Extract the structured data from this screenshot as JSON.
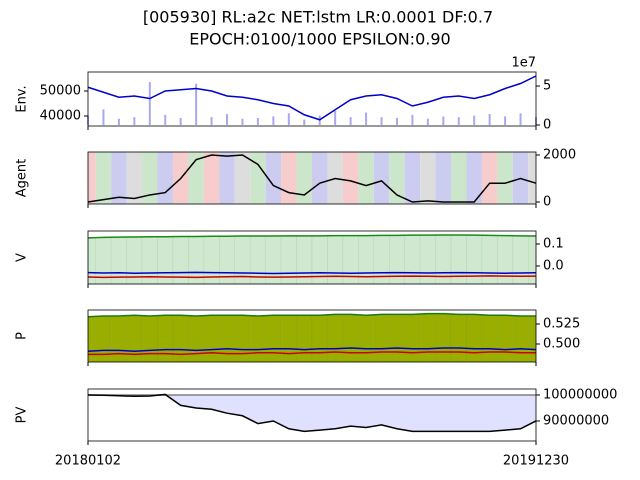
{
  "suptitle": [
    "[005930] RL:a2c NET:lstm LR:0.0001 DF:0.7",
    "EPOCH:0100/1000 EPSILON:0.90"
  ],
  "x_labels": [
    "20180102",
    "20191230"
  ],
  "chart_data": [
    {
      "type": "line",
      "ylabel": "Env.",
      "yticks_side": "left",
      "ylim": [
        36000,
        57600
      ],
      "yticks": [
        40000,
        50000
      ],
      "y2lim": [
        -0.13,
        6.8
      ],
      "y2ticks": [
        0,
        5
      ],
      "y2_offset_label": "1e7",
      "series": [
        {
          "style": "bar",
          "axis": "y2",
          "color": "#a8a8f0",
          "values": [
            1.2,
            2.0,
            0.8,
            1.0,
            5.5,
            1.3,
            0.9,
            5.3,
            1.0,
            1.4,
            0.8,
            0.9,
            1.1,
            1.5,
            0.7,
            1.2,
            1.8,
            1.0,
            1.6,
            1.0,
            0.9,
            1.3,
            0.8,
            1.1,
            1.0,
            1.2,
            1.4,
            1.1,
            1.5,
            1.0
          ]
        },
        {
          "color": "#0000cc",
          "values": [
            51500,
            49500,
            47500,
            48000,
            47000,
            50000,
            50500,
            51000,
            50000,
            48000,
            47500,
            46500,
            45000,
            44000,
            40500,
            38500,
            42500,
            46500,
            48000,
            48500,
            47000,
            44000,
            45500,
            47500,
            48000,
            47000,
            48500,
            51000,
            53000,
            56000
          ]
        }
      ]
    },
    {
      "type": "line",
      "ylabel": "Agent",
      "yticks_side": "right",
      "ylim": [
        -85,
        2128
      ],
      "yticks": [
        0,
        2000
      ],
      "stripe_colors": [
        "#f6cccc",
        "#cce6cc",
        "#ccccf0",
        "#dddddd",
        "#cce6cc",
        "#ccccf0",
        "#f6cccc",
        "#cce6cc",
        "#f6cccc",
        "#ccccf0",
        "#dddddd",
        "#cce6cc",
        "#ccccf0",
        "#f6cccc",
        "#cce6cc",
        "#ccccf0",
        "#dddddd",
        "#f6cccc",
        "#cce6cc",
        "#ccccf0",
        "#cce6cc",
        "#ccccf0",
        "#dddddd",
        "#ccccf0",
        "#cce6cc",
        "#ccccf0",
        "#f6cccc",
        "#cce6cc",
        "#ccccf0",
        "#dddddd"
      ],
      "series": [
        {
          "color": "#000000",
          "values": [
            0,
            100,
            200,
            150,
            300,
            400,
            1000,
            1800,
            2000,
            1950,
            2000,
            1600,
            700,
            400,
            300,
            800,
            1000,
            900,
            700,
            900,
            300,
            0,
            50,
            0,
            0,
            0,
            800,
            800,
            1000,
            800
          ]
        }
      ]
    },
    {
      "type": "line",
      "ylabel": "V",
      "yticks_side": "right",
      "ylim": [
        -0.082,
        0.159
      ],
      "yticks": [
        {
          "value": 0,
          "label": "0.0"
        },
        0.1
      ],
      "series": [
        {
          "color": "#1a8a1a",
          "fill_color": "#cfe8cf",
          "values": [
            0.128,
            0.13,
            0.131,
            0.132,
            0.133,
            0.133,
            0.134,
            0.134,
            0.135,
            0.135,
            0.136,
            0.136,
            0.136,
            0.137,
            0.137,
            0.137,
            0.138,
            0.138,
            0.138,
            0.139,
            0.139,
            0.14,
            0.14,
            0.141,
            0.141,
            0.14,
            0.139,
            0.138,
            0.137,
            0.136
          ]
        },
        {
          "color": "#0000cc",
          "values": [
            -0.03,
            -0.032,
            -0.031,
            -0.033,
            -0.032,
            -0.031,
            -0.03,
            -0.029,
            -0.03,
            -0.031,
            -0.032,
            -0.033,
            -0.034,
            -0.033,
            -0.032,
            -0.031,
            -0.032,
            -0.033,
            -0.032,
            -0.031,
            -0.03,
            -0.031,
            -0.032,
            -0.031,
            -0.03,
            -0.031,
            -0.032,
            -0.033,
            -0.032,
            -0.031
          ]
        },
        {
          "color": "#cc0000",
          "values": [
            -0.05,
            -0.052,
            -0.051,
            -0.05,
            -0.049,
            -0.05,
            -0.051,
            -0.052,
            -0.05,
            -0.049,
            -0.048,
            -0.05,
            -0.051,
            -0.05,
            -0.049,
            -0.048,
            -0.047,
            -0.048,
            -0.049,
            -0.048,
            -0.047,
            -0.046,
            -0.047,
            -0.048,
            -0.047,
            -0.046,
            -0.045,
            -0.046,
            -0.047,
            -0.046
          ]
        }
      ]
    },
    {
      "type": "line",
      "ylabel": "P",
      "yticks_side": "right",
      "ylim": [
        0.4775,
        0.5425
      ],
      "yticks": [
        {
          "value": 0.5,
          "label": "0.500"
        },
        0.525
      ],
      "series": [
        {
          "color": "#1a7a1a",
          "fill_color": "#9aae00",
          "values": [
            0.534,
            0.535,
            0.535,
            0.536,
            0.535,
            0.536,
            0.536,
            0.535,
            0.536,
            0.536,
            0.536,
            0.535,
            0.536,
            0.536,
            0.536,
            0.536,
            0.537,
            0.537,
            0.536,
            0.537,
            0.537,
            0.537,
            0.538,
            0.538,
            0.537,
            0.537,
            0.536,
            0.536,
            0.535,
            0.535
          ]
        },
        {
          "color": "#0000cc",
          "values": [
            0.491,
            0.492,
            0.492,
            0.491,
            0.492,
            0.493,
            0.493,
            0.492,
            0.493,
            0.494,
            0.493,
            0.493,
            0.494,
            0.494,
            0.493,
            0.494,
            0.494,
            0.495,
            0.494,
            0.494,
            0.495,
            0.494,
            0.494,
            0.495,
            0.495,
            0.494,
            0.494,
            0.493,
            0.494,
            0.493
          ]
        },
        {
          "color": "#cc0000",
          "values": [
            0.487,
            0.487,
            0.488,
            0.487,
            0.488,
            0.488,
            0.487,
            0.488,
            0.489,
            0.488,
            0.488,
            0.489,
            0.489,
            0.488,
            0.489,
            0.489,
            0.49,
            0.489,
            0.489,
            0.49,
            0.49,
            0.489,
            0.49,
            0.49,
            0.49,
            0.489,
            0.49,
            0.49,
            0.489,
            0.489
          ]
        }
      ]
    },
    {
      "type": "line",
      "ylabel": "PV",
      "yticks_side": "right",
      "ylim": [
        82300000,
        102300000
      ],
      "yticks": [
        90000000,
        100000000
      ],
      "baseline": 100000000,
      "baseline_color": "#808080",
      "fill_color": "#e0e0ff",
      "series": [
        {
          "color": "#000000",
          "values": [
            100000000,
            99900000,
            99700000,
            99500000,
            99600000,
            100200000,
            96000000,
            95000000,
            94500000,
            93000000,
            92000000,
            89000000,
            90000000,
            87000000,
            86000000,
            86500000,
            87000000,
            88000000,
            87500000,
            88500000,
            87000000,
            86000000,
            86000000,
            86000000,
            86000000,
            86000000,
            86000000,
            86500000,
            87000000,
            90000000
          ]
        }
      ]
    }
  ]
}
